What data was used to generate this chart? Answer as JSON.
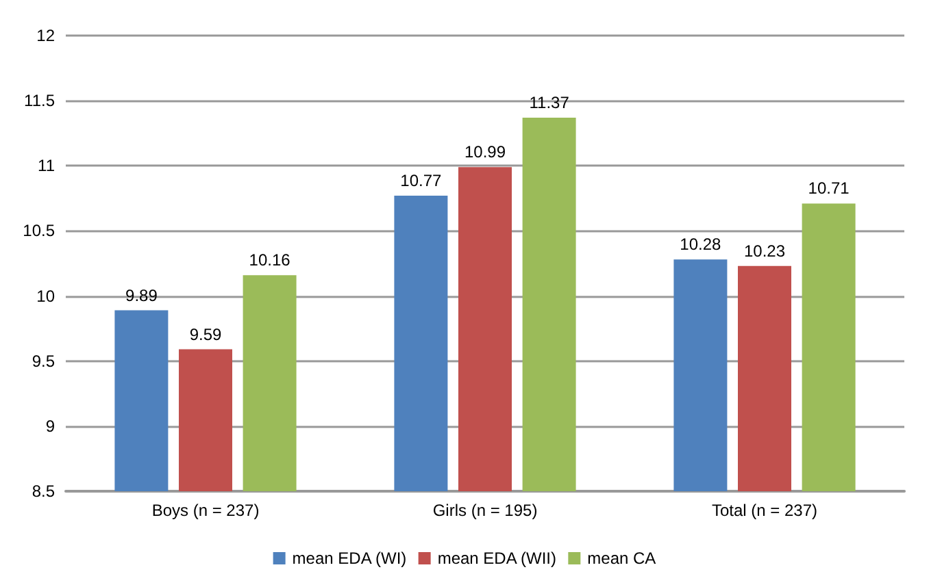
{
  "chart_data": {
    "type": "bar",
    "categories": [
      "Boys (n = 237)",
      "Girls (n = 195)",
      "Total (n = 237)"
    ],
    "series": [
      {
        "name": "mean EDA (WI)",
        "color": "#4f81bd",
        "values": [
          9.89,
          10.77,
          10.28
        ]
      },
      {
        "name": "mean EDA (WII)",
        "color": "#c0504d",
        "values": [
          9.59,
          10.99,
          10.23
        ]
      },
      {
        "name": "mean CA",
        "color": "#9bbb59",
        "values": [
          10.16,
          11.37,
          10.71
        ]
      }
    ],
    "ylim": [
      8.5,
      12
    ],
    "yticks": [
      8.5,
      9,
      9.5,
      10,
      10.5,
      11,
      11.5,
      12
    ],
    "grid": "y",
    "legend": "bottom",
    "data_labels": true
  }
}
